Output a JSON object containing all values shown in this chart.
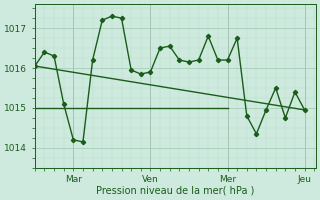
{
  "bg_color": "#ceeade",
  "grid_color_major": "#a8ccb8",
  "grid_color_minor": "#b8dcc8",
  "line_color": "#1a5c1a",
  "xlabel": "Pression niveau de la mer( hPa )",
  "xlabel_color": "#1a5c1a",
  "yticks": [
    1014,
    1015,
    1016,
    1017
  ],
  "xtick_labels": [
    "Mar",
    "Ven",
    "Mer",
    "Jeu"
  ],
  "xlim": [
    0,
    175
  ],
  "ylim": [
    1013.5,
    1017.6
  ],
  "series1_x": [
    0,
    6,
    12,
    18,
    24,
    30,
    36,
    42,
    48,
    54,
    60,
    66,
    72,
    78,
    84,
    90,
    96,
    102,
    108,
    114,
    120,
    126,
    132,
    138,
    144,
    150,
    156,
    162,
    168
  ],
  "series1_y": [
    1016.05,
    1016.4,
    1016.3,
    1015.1,
    1014.2,
    1014.15,
    1016.2,
    1017.2,
    1017.3,
    1017.25,
    1015.95,
    1015.85,
    1015.9,
    1016.5,
    1016.55,
    1016.2,
    1016.15,
    1016.2,
    1016.8,
    1016.2,
    1016.2,
    1016.75,
    1014.8,
    1014.35,
    1014.95,
    1015.5,
    1014.75,
    1015.4,
    1014.95
  ],
  "series2_x": [
    0,
    168
  ],
  "series2_y": [
    1016.05,
    1014.95
  ],
  "series3_x": [
    0,
    120
  ],
  "series3_y": [
    1015.0,
    1015.0
  ],
  "xtick_positions": [
    24,
    72,
    120,
    168
  ],
  "vline_positions": [
    24,
    72,
    120,
    168
  ],
  "vline_color": "#888888"
}
